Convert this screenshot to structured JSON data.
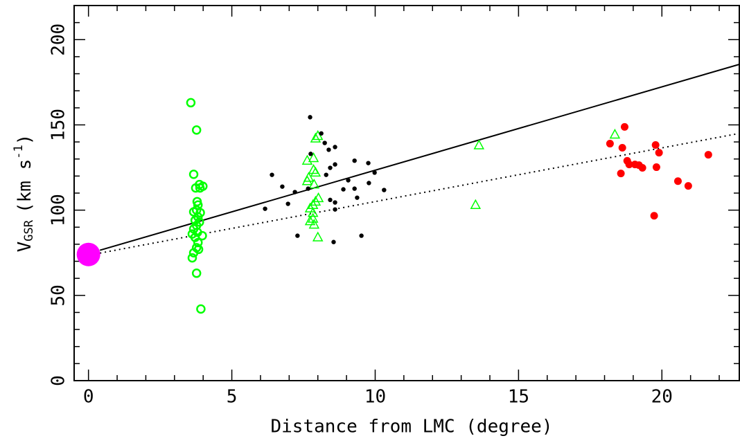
{
  "chart_data": {
    "type": "scatter",
    "xlabel": "Distance from LMC (degree)",
    "ylabel": {
      "main": "V",
      "sub": "GSR",
      "unit": "(km s",
      "sup": "-1",
      "close": ")"
    },
    "xlim": [
      -0.5,
      22.7
    ],
    "ylim": [
      0,
      220
    ],
    "xticks": [
      0,
      5,
      10,
      15,
      20
    ],
    "yticks": [
      0,
      50,
      100,
      150,
      200
    ],
    "xminorticks": [
      1,
      2,
      3,
      4,
      6,
      7,
      8,
      9,
      11,
      12,
      13,
      14,
      16,
      17,
      18,
      19,
      21,
      22
    ],
    "yminorticks": [
      10,
      20,
      30,
      40,
      60,
      70,
      80,
      90,
      110,
      120,
      130,
      140,
      160,
      170,
      180,
      190,
      210
    ],
    "series": [
      {
        "type": "line",
        "style": "solid",
        "color": "#000000",
        "x": [
          0.4,
          22.7
        ],
        "values": [
          76.5,
          185.5
        ]
      },
      {
        "type": "line",
        "style": "dotted",
        "color": "#000000",
        "x": [
          0.4,
          22.7
        ],
        "values": [
          74.8,
          145
        ]
      },
      {
        "type": "scatter",
        "marker": "circle-open",
        "color": "#00ff00",
        "x": [
          3.57,
          3.77,
          3.67,
          3.74,
          3.89,
          3.99,
          3.87,
          3.79,
          3.82,
          3.77,
          3.67,
          3.9,
          3.82,
          3.72,
          3.87,
          3.77,
          3.67,
          3.8,
          3.62,
          3.97,
          3.72,
          3.82,
          3.77,
          3.84,
          3.67,
          3.62,
          3.77,
          3.92
        ],
        "values": [
          163,
          147,
          121,
          113,
          113,
          114,
          115,
          105,
          103,
          100,
          99,
          98.5,
          96,
          94,
          93,
          91,
          89,
          87,
          86,
          85,
          84,
          81,
          78,
          77,
          75,
          72,
          63,
          42
        ]
      },
      {
        "type": "scatter",
        "marker": "triangle-open",
        "color": "#00ff00",
        "x": [
          8.0,
          7.92,
          7.85,
          7.63,
          7.85,
          7.92,
          7.68,
          7.63,
          7.87,
          8.02,
          7.92,
          7.83,
          7.73,
          7.83,
          7.83,
          7.73,
          7.87,
          8.0,
          13.62,
          13.5,
          18.36
        ],
        "values": [
          143.5,
          142,
          130.5,
          129,
          123.6,
          122,
          119,
          117,
          115,
          107,
          105,
          103,
          101,
          98.4,
          95,
          93.5,
          91.5,
          84,
          138,
          103,
          144.3
        ]
      },
      {
        "type": "scatter",
        "marker": "dot",
        "color": "#000000",
        "x": [
          7.73,
          8.12,
          8.24,
          7.75,
          8.38,
          8.6,
          9.28,
          9.76,
          8.6,
          8.43,
          6.4,
          8.29,
          9.06,
          9.98,
          6.76,
          7.66,
          8.89,
          9.28,
          10.31,
          9.78,
          7.2,
          6.96,
          8.43,
          8.6,
          9.37,
          6.16,
          8.6,
          7.29,
          9.52,
          8.55
        ],
        "values": [
          154.5,
          145,
          139.4,
          133,
          135.4,
          137,
          129,
          127.6,
          126.8,
          124.8,
          120.7,
          120.7,
          117.5,
          122,
          113.8,
          112.6,
          112.2,
          112.6,
          111.8,
          115.9,
          110.6,
          103.7,
          106,
          104.5,
          107.3,
          100.8,
          100.4,
          85,
          85,
          81.3
        ]
      },
      {
        "type": "scatter",
        "marker": "dot-large",
        "color": "#ff0000",
        "x": [
          18.19,
          18.7,
          18.62,
          19.78,
          19.9,
          18.79,
          18.86,
          19.06,
          19.2,
          19.32,
          19.81,
          18.57,
          20.56,
          20.92,
          21.62,
          19.73
        ],
        "values": [
          139,
          148.8,
          136.6,
          138.2,
          133.7,
          128.9,
          126.8,
          126.8,
          126.4,
          124.8,
          125.2,
          121.5,
          117,
          114.2,
          132.5,
          96.7
        ]
      },
      {
        "type": "scatter",
        "marker": "dot-huge",
        "color": "#ff00ff",
        "x": [
          0
        ],
        "values": [
          74
        ]
      }
    ]
  }
}
